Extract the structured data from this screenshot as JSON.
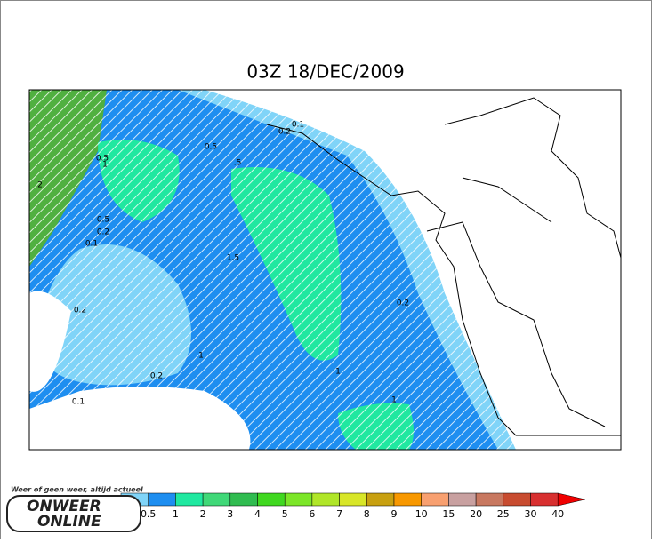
{
  "title": "03Z 18/DEC/2009",
  "contour_labels": [
    "0.1",
    "0.2",
    "0.5",
    "1",
    "2",
    "0.5",
    "0.2",
    "0.1",
    "1.5",
    "0.2",
    "0.2",
    "1",
    "1",
    "1",
    "0.2",
    "0.5",
    ".5",
    "0.1"
  ],
  "legend": {
    "labels": [
      "0.5",
      "1",
      "2",
      "3",
      "4",
      "5",
      "6",
      "7",
      "8",
      "9",
      "10",
      "15",
      "20",
      "25",
      "30",
      "40"
    ],
    "colors": [
      "#80d4f8",
      "#1e8ef0",
      "#20e8a0",
      "#40d878",
      "#30bc50",
      "#40d820",
      "#7ce628",
      "#b0e628",
      "#d8e628",
      "#c8a010",
      "#f89800",
      "#f8a070",
      "#c8a0a0",
      "#c87860",
      "#c84c30",
      "#d83030",
      "#f00000"
    ]
  },
  "logo": {
    "tagline": "Weer of geen weer, altijd actueel",
    "line1": "ONWEER",
    "line2": "ONLINE"
  }
}
